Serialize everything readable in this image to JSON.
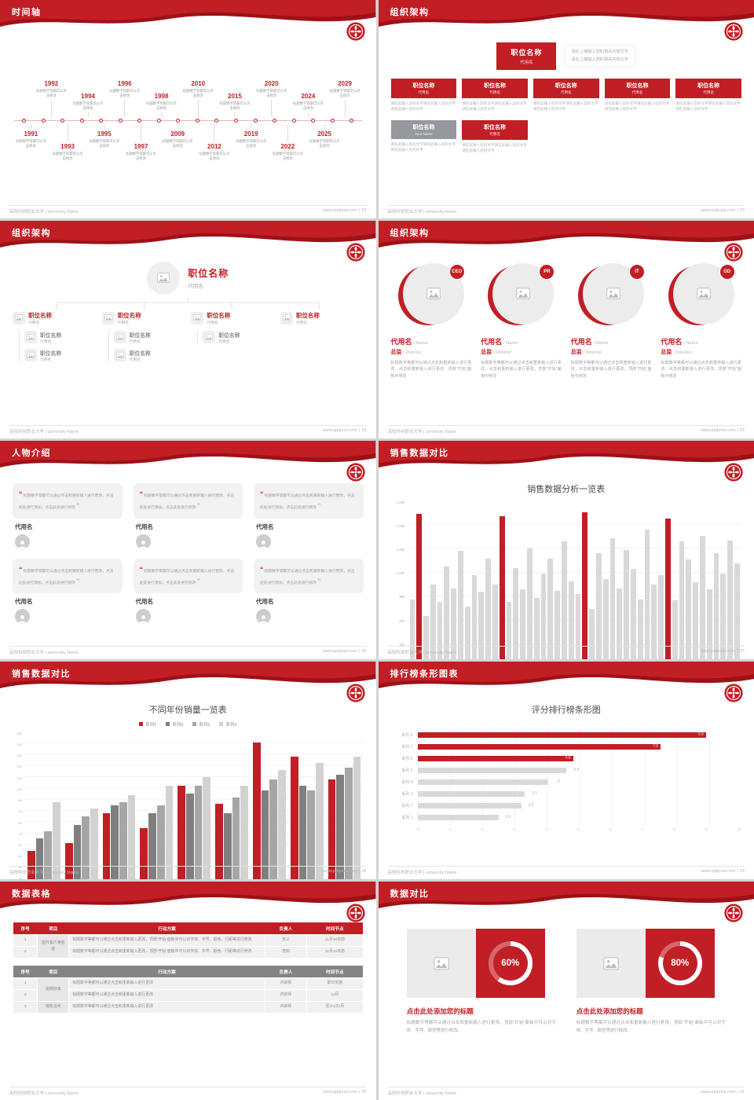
{
  "common": {
    "footer_left": "高校科技职业大学 | university Name",
    "footer_site": "www.pptjunsi.com",
    "footer_sep": "|",
    "accent_color": "#c21e25"
  },
  "slides": [
    {
      "title": "时间轴",
      "page_no": "22",
      "top_items": [
        {
          "year": "1992",
          "far": true,
          "caption": "标题数字等都可以点击修改"
        },
        {
          "year": "1994",
          "caption": "标题数字等都可以点击修改"
        },
        {
          "year": "1996",
          "far": true,
          "caption": "标题数字等都可以点击修改"
        },
        {
          "year": "1998",
          "caption": "标题数字等都可以点击修改"
        },
        {
          "year": "2010",
          "far": true,
          "caption": "标题数字等都可以点击修改"
        },
        {
          "year": "2015",
          "caption": "标题数字等都可以点击修改"
        },
        {
          "year": "2020",
          "far": true,
          "caption": "标题数字等都可以点击修改"
        },
        {
          "year": "2024",
          "caption": "标题数字等都可以点击修改"
        },
        {
          "year": "2029",
          "far": true,
          "caption": "标题数字等都可以点击修改"
        }
      ],
      "axis_years": [
        "1991",
        "1992",
        "1993",
        "1994",
        "1995",
        "1996",
        "1997",
        "1998",
        "2009",
        "2010",
        "2012",
        "2015",
        "2019",
        "2020",
        "2022",
        "2024",
        "2025",
        "2029"
      ],
      "bottom_items": [
        {
          "year": "1991",
          "caption": "标题数字等都可以点击修改"
        },
        {
          "year": "1993",
          "far": true,
          "caption": "标题数字等都可以点击修改"
        },
        {
          "year": "1995",
          "caption": "标题数字等都可以点击修改"
        },
        {
          "year": "1997",
          "far": true,
          "caption": "标题数字等都可以点击修改"
        },
        {
          "year": "2009",
          "caption": "标题数字等都可以点击修改"
        },
        {
          "year": "2012",
          "far": true,
          "caption": "标题数字等都可以点击修改"
        },
        {
          "year": "2019",
          "caption": "标题数字等都可以点击修改"
        },
        {
          "year": "2022",
          "far": true,
          "caption": "标题数字等都可以点击修改"
        },
        {
          "year": "2025",
          "caption": "标题数字等都可以点击修改"
        }
      ]
    },
    {
      "title": "组织架构",
      "page_no": "23",
      "root": {
        "title": "职位名称",
        "sub": "代用名",
        "notes": [
          "请在上端输入您的相关内容文字",
          "请在上端输入您的相关内容文字"
        ]
      },
      "row1": [
        {
          "title": "职位名称",
          "sub": "代用名",
          "desc": "请在此输入您的文字请在此输入您的文字请在此输入您的文字"
        },
        {
          "title": "职位名称",
          "sub": "代用名",
          "desc": "请在此输入您的文字请在此输入您的文字请在此输入您的文字"
        },
        {
          "title": "职位名称",
          "sub": "代用名",
          "desc": "请在此输入您的文字请在此输入您的文字请在此输入您的文字"
        },
        {
          "title": "职位名称",
          "sub": "代用名",
          "desc": "请在此输入您的文字请在此输入您的文字请在此输入您的文字"
        },
        {
          "title": "职位名称",
          "sub": "代用名",
          "desc": "请在此输入您的文字请在此输入您的文字请在此输入您的文字"
        }
      ],
      "row2": [
        {
          "title": "职位名称",
          "sub": "Your Name",
          "gray": true,
          "desc": "请在此输入您的文字请在此输入您的文字请在此输入您的文字"
        },
        {
          "title": "职位名称",
          "sub": "代用名",
          "desc": "请在此输入您的文字请在此输入您的文字请在此输入您的文字"
        }
      ]
    },
    {
      "title": "组织架构",
      "page_no": "24",
      "root": {
        "title": "职位名称",
        "sub": "代用名"
      },
      "branches": [
        {
          "title": "职位名称",
          "sub": "代用名",
          "subs": [
            {
              "title": "职位名称",
              "sub": "代用名"
            },
            {
              "title": "职位名称",
              "sub": "代用名"
            }
          ]
        },
        {
          "title": "职位名称",
          "sub": "代用名",
          "subs": [
            {
              "title": "职位名称",
              "sub": "代用名"
            },
            {
              "title": "职位名称",
              "sub": "代用名"
            }
          ]
        },
        {
          "title": "职位名称",
          "sub": "代用名",
          "subs": [
            {
              "title": "职位名称",
              "sub": "代用名"
            }
          ]
        },
        {
          "title": "职位名称",
          "sub": "代用名",
          "subs": []
        }
      ]
    },
    {
      "title": "组织架构",
      "page_no": "25",
      "members": [
        {
          "badge": "CEO",
          "name": "代用名",
          "name_suffix": " / Name",
          "role": "总监",
          "role_suffix": " / Director",
          "desc": "标题数字等都可以通过点击和重新输入进行更改，点击和重新输入进行更改，顶部“开始”面板中修改"
        },
        {
          "badge": "PR",
          "name": "代用名",
          "name_suffix": " / Name",
          "role": "总监",
          "role_suffix": " / Director",
          "desc": "标题数字等都可以通过点击和重新输入进行更改，点击和重新输入进行更改，顶部“开始”面板中修改"
        },
        {
          "badge": "IT",
          "name": "代用名",
          "name_suffix": " / Name",
          "role": "总监",
          "role_suffix": " / Director",
          "desc": "标题数字等都可以通过点击和重新输入进行更改，点击和重新输入进行更改，顶部“开始”面板中修改"
        },
        {
          "badge": "GD",
          "name": "代用名",
          "name_suffix": " / Name",
          "role": "总监",
          "role_suffix": " / Director",
          "desc": "标题数字等都可以通过点击和重新输入进行更改，点击和重新输入进行更改，顶部“开始”面板中修改"
        }
      ]
    },
    {
      "title": "人物介绍",
      "page_no": "26",
      "open_quote": "“",
      "close_quote": "”",
      "cards": [
        {
          "text": "标题数字等都可以通过点击和重新输入进行更改，点击此处进行添加，点击此处进行修改",
          "name": "代用名"
        },
        {
          "text": "标题数字等都可以通过点击和重新输入进行更改，点击此处进行添加，点击此处进行修改",
          "name": "代用名"
        },
        {
          "text": "标题数字等都可以通过点击和重新输入进行更改，点击此处进行添加，点击此处进行修改",
          "name": "代用名"
        },
        {
          "text": "标题数字等都可以通过点击和重新输入进行更改，点击此处进行添加，点击此处进行修改",
          "name": "代用名"
        },
        {
          "text": "标题数字等都可以通过点击和重新输入进行更改，点击此处进行添加，点击此处进行修改",
          "name": "代用名"
        },
        {
          "text": "标题数字等都可以通过点击和重新输入进行更改，点击此处进行添加，点击此处进行修改",
          "name": "代用名"
        }
      ]
    },
    {
      "title": "销售数据对比",
      "page_no": "27",
      "chart": {
        "type": "bar",
        "chart_title": "销售数据分析一览表",
        "ymax": 1600,
        "yticks": [
          "1,600",
          "1,400",
          "1,200",
          "1,000",
          "800",
          "600",
          "400",
          "200",
          "0"
        ],
        "xlabels": [
          "2017",
          "2018",
          "2019",
          "2020"
        ],
        "bars": [
          {
            "v": 780
          },
          {
            "v": 1490,
            "hl": true
          },
          {
            "v": 640
          },
          {
            "v": 900
          },
          {
            "v": 760
          },
          {
            "v": 1050
          },
          {
            "v": 870
          },
          {
            "v": 1180
          },
          {
            "v": 720
          },
          {
            "v": 980
          },
          {
            "v": 840
          },
          {
            "v": 1120
          },
          {
            "v": 900
          },
          {
            "v": 1470,
            "hl": true
          },
          {
            "v": 760
          },
          {
            "v": 1040
          },
          {
            "v": 860
          },
          {
            "v": 1200
          },
          {
            "v": 790
          },
          {
            "v": 990
          },
          {
            "v": 1120
          },
          {
            "v": 850
          },
          {
            "v": 1260
          },
          {
            "v": 930
          },
          {
            "v": 820
          },
          {
            "v": 1500,
            "hl": true
          },
          {
            "v": 700
          },
          {
            "v": 1160
          },
          {
            "v": 950
          },
          {
            "v": 1290
          },
          {
            "v": 870
          },
          {
            "v": 1190
          },
          {
            "v": 1030
          },
          {
            "v": 780
          },
          {
            "v": 1360
          },
          {
            "v": 900
          },
          {
            "v": 980
          },
          {
            "v": 1450,
            "hl": true
          },
          {
            "v": 770
          },
          {
            "v": 1260
          },
          {
            "v": 1110
          },
          {
            "v": 920
          },
          {
            "v": 1310
          },
          {
            "v": 860
          },
          {
            "v": 1160
          },
          {
            "v": 990
          },
          {
            "v": 1270
          },
          {
            "v": 1080
          }
        ]
      }
    },
    {
      "title": "销售数据对比",
      "page_no": "28",
      "chart": {
        "type": "grouped-bar",
        "chart_title": "不同年份销量一览表",
        "ymax": 160,
        "yticks": [
          "160",
          "150",
          "140",
          "130",
          "120",
          "110",
          "100",
          "90",
          "80",
          "70",
          "60",
          "50",
          "40",
          "30",
          "20",
          "10",
          "0"
        ],
        "legend": [
          {
            "label": "系列1",
            "color": "#c21e25"
          },
          {
            "label": "系列2",
            "color": "#7f7f7f"
          },
          {
            "label": "系列3",
            "color": "#a6a6a6"
          },
          {
            "label": "系列4",
            "color": "#d2d2d2"
          }
        ],
        "groups": [
          {
            "label": "2010",
            "values": [
              55,
              66,
              72,
              98
            ]
          },
          {
            "label": "2012",
            "values": [
              62,
              78,
              85,
              92
            ]
          },
          {
            "label": "2014",
            "values": [
              88,
              95,
              98,
              104
            ]
          },
          {
            "label": "2016",
            "values": [
              75,
              88,
              95,
              112
            ]
          },
          {
            "label": "2018",
            "values": [
              112,
              105,
              112,
              120
            ]
          },
          {
            "label": "2020",
            "values": [
              96,
              88,
              102,
              112
            ]
          },
          {
            "label": "2022",
            "values": [
              150,
              108,
              118,
              126
            ]
          },
          {
            "label": "2024",
            "values": [
              138,
              112,
              108,
              132
            ]
          },
          {
            "label": "2026",
            "values": [
              118,
              122,
              128,
              138
            ]
          }
        ]
      }
    },
    {
      "title": "排行榜条形图表",
      "page_no": "29",
      "chart": {
        "type": "hbar",
        "chart_title": "评分排行榜条形图",
        "xmax": 10,
        "xticks": [
          "0",
          "1",
          "2",
          "3",
          "4",
          "5",
          "6",
          "7",
          "8",
          "9",
          "10"
        ],
        "rows": [
          {
            "label": "系列 8",
            "v": 8.9,
            "value_label": "8.9",
            "hl": true
          },
          {
            "label": "系列 7",
            "v": 7.5,
            "value_label": "7.5",
            "hl": true
          },
          {
            "label": "系列 6",
            "v": 4.8,
            "value_label": "4.8",
            "hl": true
          },
          {
            "label": "系列 5",
            "v": 4.6,
            "value_label": "4.6"
          },
          {
            "label": "系列 4",
            "v": 4,
            "value_label": "4"
          },
          {
            "label": "系列 3",
            "v": 3.3,
            "value_label": "3.3"
          },
          {
            "label": "系列 2",
            "v": 3.2,
            "value_label": "3.2"
          },
          {
            "label": "系列 1",
            "v": 2.5,
            "value_label": "2.5"
          }
        ]
      }
    },
    {
      "title": "数据表格",
      "page_no": "30",
      "table1": {
        "headers": [
          "序号",
          "项目",
          "行动方案",
          "负责人",
          "时间节点"
        ],
        "project": "提升客户满意度",
        "rows": [
          {
            "no": "1",
            "plan": "标题数字等都可以通过点击和重新输入更改，顶部“开始”面板中可以对字体、字号、颜色、行距等进行修改",
            "owner": "张三",
            "due": "11月30日前"
          },
          {
            "no": "2",
            "plan": "标题数字等都可以通过点击和重新输入更改，顶部“开始”面板中可以对字体、字号、颜色、行距等进行修改",
            "owner": "李四",
            "due": "11月15日前"
          }
        ]
      },
      "table2": {
        "headers": [
          "序号",
          "项目",
          "行动方案",
          "负责人",
          "时间节点"
        ],
        "project_a": "视频标准",
        "project_b": "销售话术",
        "rows": [
          {
            "no": "1",
            "plan": "标题数字等都可以通过点击和重新输入进行更改",
            "owner": "内训师",
            "due": "即日实施"
          },
          {
            "no": "2",
            "plan": "标题数字等都可以通过点击和重新输入进行更改",
            "owner": "内训师",
            "due": "11月"
          },
          {
            "no": "3",
            "plan": "标题数字等都可以通过点击和重新输入进行更改",
            "owner": "内训师",
            "due": "至少1次/月"
          }
        ]
      }
    },
    {
      "title": "数据对比",
      "page_no": "31",
      "panels": [
        {
          "pct": 60,
          "pct_label": "60%",
          "heading": "点击此处添加您的标题",
          "desc": "标题数字等都可以通过点击和重新输入进行更改，顶部“开始”面板中可以对字体、字号、颜色等进行修改。"
        },
        {
          "pct": 80,
          "pct_label": "80%",
          "heading": "点击此处添加您的标题",
          "desc": "标题数字等都可以通过点击和重新输入进行更改，顶部“开始”面板中可以对字体、字号、颜色等进行修改。"
        }
      ]
    }
  ]
}
